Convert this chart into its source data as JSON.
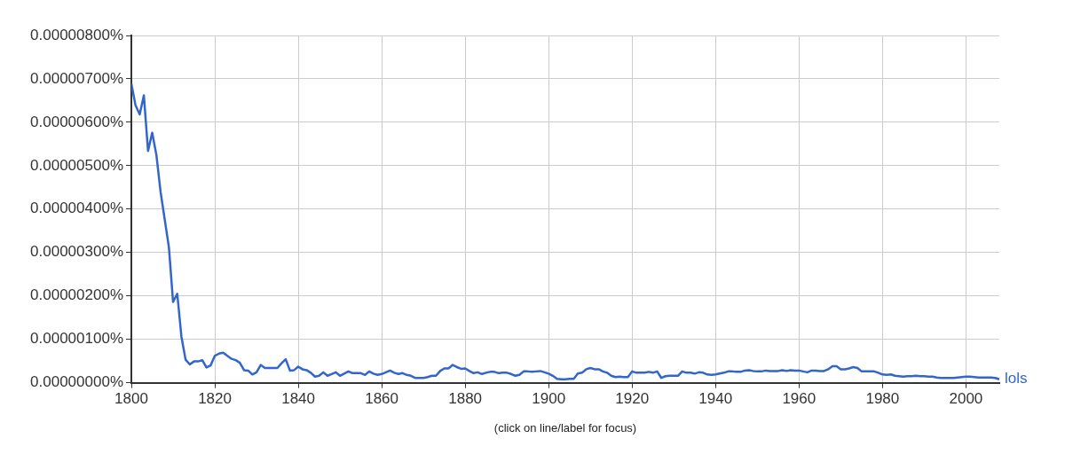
{
  "chart_data": {
    "type": "line",
    "annotations": [
      "(click on line/label for focus)"
    ],
    "xlim": [
      1800,
      2008
    ],
    "xticks": [
      1800,
      1820,
      1840,
      1860,
      1880,
      1900,
      1920,
      1940,
      1960,
      1980,
      2000
    ],
    "ylim": [
      0,
      8e-06
    ],
    "yticks": [
      {
        "value": 0,
        "label": "0.00000000%"
      },
      {
        "value": 1e-06,
        "label": "0.00000100%"
      },
      {
        "value": 2e-06,
        "label": "0.00000200%"
      },
      {
        "value": 3e-06,
        "label": "0.00000300%"
      },
      {
        "value": 4e-06,
        "label": "0.00000400%"
      },
      {
        "value": 5e-06,
        "label": "0.00000500%"
      },
      {
        "value": 6e-06,
        "label": "0.00000600%"
      },
      {
        "value": 7e-06,
        "label": "0.00000700%"
      },
      {
        "value": 8e-06,
        "label": "0.00000800%"
      }
    ],
    "grid": true,
    "legend": false,
    "marker": "none",
    "line_style": "solid",
    "x": [
      1800,
      1801,
      1802,
      1803,
      1804,
      1805,
      1806,
      1807,
      1808,
      1809,
      1810,
      1811,
      1812,
      1813,
      1814,
      1815,
      1816,
      1817,
      1818,
      1819,
      1820,
      1821,
      1822,
      1823,
      1824,
      1825,
      1826,
      1827,
      1828,
      1829,
      1830,
      1831,
      1832,
      1833,
      1834,
      1835,
      1836,
      1837,
      1838,
      1839,
      1840,
      1841,
      1842,
      1843,
      1844,
      1845,
      1846,
      1847,
      1848,
      1849,
      1850,
      1851,
      1852,
      1853,
      1854,
      1855,
      1856,
      1857,
      1858,
      1859,
      1860,
      1861,
      1862,
      1863,
      1864,
      1865,
      1866,
      1867,
      1868,
      1869,
      1870,
      1871,
      1872,
      1873,
      1874,
      1875,
      1876,
      1877,
      1878,
      1879,
      1880,
      1881,
      1882,
      1883,
      1884,
      1885,
      1886,
      1887,
      1888,
      1889,
      1890,
      1891,
      1892,
      1893,
      1894,
      1895,
      1896,
      1897,
      1898,
      1899,
      1900,
      1901,
      1902,
      1903,
      1904,
      1905,
      1906,
      1907,
      1908,
      1909,
      1910,
      1911,
      1912,
      1913,
      1914,
      1915,
      1916,
      1917,
      1918,
      1919,
      1920,
      1921,
      1922,
      1923,
      1924,
      1925,
      1926,
      1927,
      1928,
      1929,
      1930,
      1931,
      1932,
      1933,
      1934,
      1935,
      1936,
      1937,
      1938,
      1939,
      1940,
      1941,
      1942,
      1943,
      1944,
      1945,
      1946,
      1947,
      1948,
      1949,
      1950,
      1951,
      1952,
      1953,
      1954,
      1955,
      1956,
      1957,
      1958,
      1959,
      1960,
      1961,
      1962,
      1963,
      1964,
      1965,
      1966,
      1967,
      1968,
      1969,
      1970,
      1971,
      1972,
      1973,
      1974,
      1975,
      1976,
      1977,
      1978,
      1979,
      1980,
      1981,
      1982,
      1983,
      1984,
      1985,
      1986,
      1987,
      1988,
      1989,
      1990,
      1991,
      1992,
      1993,
      1994,
      1995,
      1996,
      1997,
      1998,
      1999,
      2000,
      2001,
      2002,
      2003,
      2004,
      2005,
      2006,
      2007,
      2008
    ],
    "series": [
      {
        "name": "lols",
        "color": "#3366cc",
        "values": [
          6.89e-06,
          6.39e-06,
          6.18e-06,
          6.62e-06,
          5.34e-06,
          5.76e-06,
          5.25e-06,
          4.4e-06,
          3.76e-06,
          3.12e-06,
          1.86e-06,
          2.05e-06,
          1.06e-06,
          5.3e-07,
          4.2e-07,
          4.9e-07,
          4.9e-07,
          5.2e-07,
          3.5e-07,
          4e-07,
          6.2e-07,
          6.7e-07,
          6.9e-07,
          6.2e-07,
          5.5e-07,
          5.2e-07,
          4.6e-07,
          2.9e-07,
          2.8e-07,
          1.9e-07,
          2.4e-07,
          4.1e-07,
          3.4e-07,
          3.4e-07,
          3.4e-07,
          3.4e-07,
          4.5e-07,
          5.4e-07,
          2.8e-07,
          2.9e-07,
          3.7e-07,
          3.1e-07,
          2.9e-07,
          2.3e-07,
          1.4e-07,
          1.6e-07,
          2.4e-07,
          1.6e-07,
          2e-07,
          2.4e-07,
          1.6e-07,
          2.1e-07,
          2.6e-07,
          2.2e-07,
          2.2e-07,
          2.2e-07,
          1.8e-07,
          2.6e-07,
          2.1e-07,
          1.8e-07,
          2e-07,
          2.4e-07,
          2.8e-07,
          2.3e-07,
          2e-07,
          2.2e-07,
          1.8e-07,
          1.6e-07,
          1.1e-07,
          1.1e-07,
          1.1e-07,
          1.3e-07,
          1.6e-07,
          1.6e-07,
          2.7e-07,
          3.3e-07,
          3.3e-07,
          4.1e-07,
          3.6e-07,
          3.2e-07,
          3.3e-07,
          2.7e-07,
          2.2e-07,
          2.4e-07,
          2e-07,
          2.3e-07,
          2.5e-07,
          2.5e-07,
          2.2e-07,
          2.3e-07,
          2.3e-07,
          2e-07,
          1.6e-07,
          1.8e-07,
          2.6e-07,
          2.6e-07,
          2.5e-07,
          2.6e-07,
          2.7e-07,
          2.4e-07,
          2.1e-07,
          1.6e-07,
          9e-08,
          8e-08,
          8e-08,
          9e-08,
          9e-08,
          2.1e-07,
          2.3e-07,
          3.1e-07,
          3.4e-07,
          3.1e-07,
          3.1e-07,
          2.6e-07,
          2.3e-07,
          1.6e-07,
          1.3e-07,
          1.4e-07,
          1.3e-07,
          1.3e-07,
          2.6e-07,
          2.3e-07,
          2.3e-07,
          2.3e-07,
          2.5e-07,
          2.3e-07,
          2.6e-07,
          1.1e-07,
          1.5e-07,
          1.6e-07,
          1.6e-07,
          1.6e-07,
          2.6e-07,
          2.3e-07,
          2.3e-07,
          2.1e-07,
          2.4e-07,
          2.3e-07,
          1.9e-07,
          1.8e-07,
          1.9e-07,
          2.1e-07,
          2.3e-07,
          2.6e-07,
          2.6e-07,
          2.5e-07,
          2.5e-07,
          2.8e-07,
          2.9e-07,
          2.7e-07,
          2.6e-07,
          2.6e-07,
          2.8e-07,
          2.7e-07,
          2.7e-07,
          2.7e-07,
          2.9e-07,
          2.7e-07,
          2.9e-07,
          2.8e-07,
          2.8e-07,
          2.6e-07,
          2.4e-07,
          2.8e-07,
          2.8e-07,
          2.7e-07,
          2.7e-07,
          3.1e-07,
          3.8e-07,
          3.8e-07,
          3.1e-07,
          3.1e-07,
          3.3e-07,
          3.6e-07,
          3.4e-07,
          2.6e-07,
          2.6e-07,
          2.6e-07,
          2.6e-07,
          2.3e-07,
          1.9e-07,
          1.8e-07,
          1.9e-07,
          1.6e-07,
          1.5e-07,
          1.4e-07,
          1.5e-07,
          1.5e-07,
          1.6e-07,
          1.5e-07,
          1.5e-07,
          1.4e-07,
          1.4e-07,
          1.2e-07,
          1.1e-07,
          1.1e-07,
          1.1e-07,
          1.1e-07,
          1.2e-07,
          1.3e-07,
          1.4e-07,
          1.4e-07,
          1.3e-07,
          1.2e-07,
          1.2e-07,
          1.2e-07,
          1.2e-07,
          1.1e-07,
          8e-08
        ]
      }
    ]
  }
}
